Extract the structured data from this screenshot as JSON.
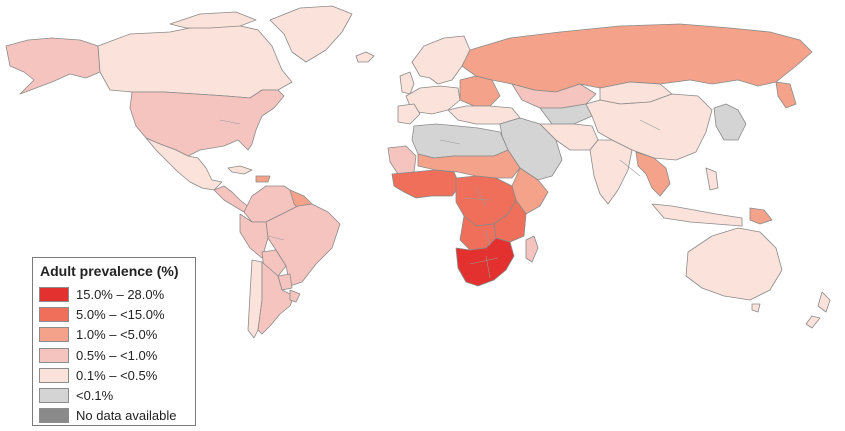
{
  "legend": {
    "title": "Adult prevalence (%)",
    "items": [
      {
        "label": "15.0% – 28.0%",
        "color": "#e2312f"
      },
      {
        "label": "5.0% – <15.0%",
        "color": "#ef6f5a"
      },
      {
        "label": "1.0% – <5.0%",
        "color": "#f4a289"
      },
      {
        "label": "0.5% – <1.0%",
        "color": "#f6c4bf"
      },
      {
        "label": "0.1% – <0.5%",
        "color": "#fbe2da"
      },
      {
        "label": "<0.1%",
        "color": "#d4d4d4"
      },
      {
        "label": "No data available",
        "color": "#8a8a8a"
      }
    ]
  }
}
